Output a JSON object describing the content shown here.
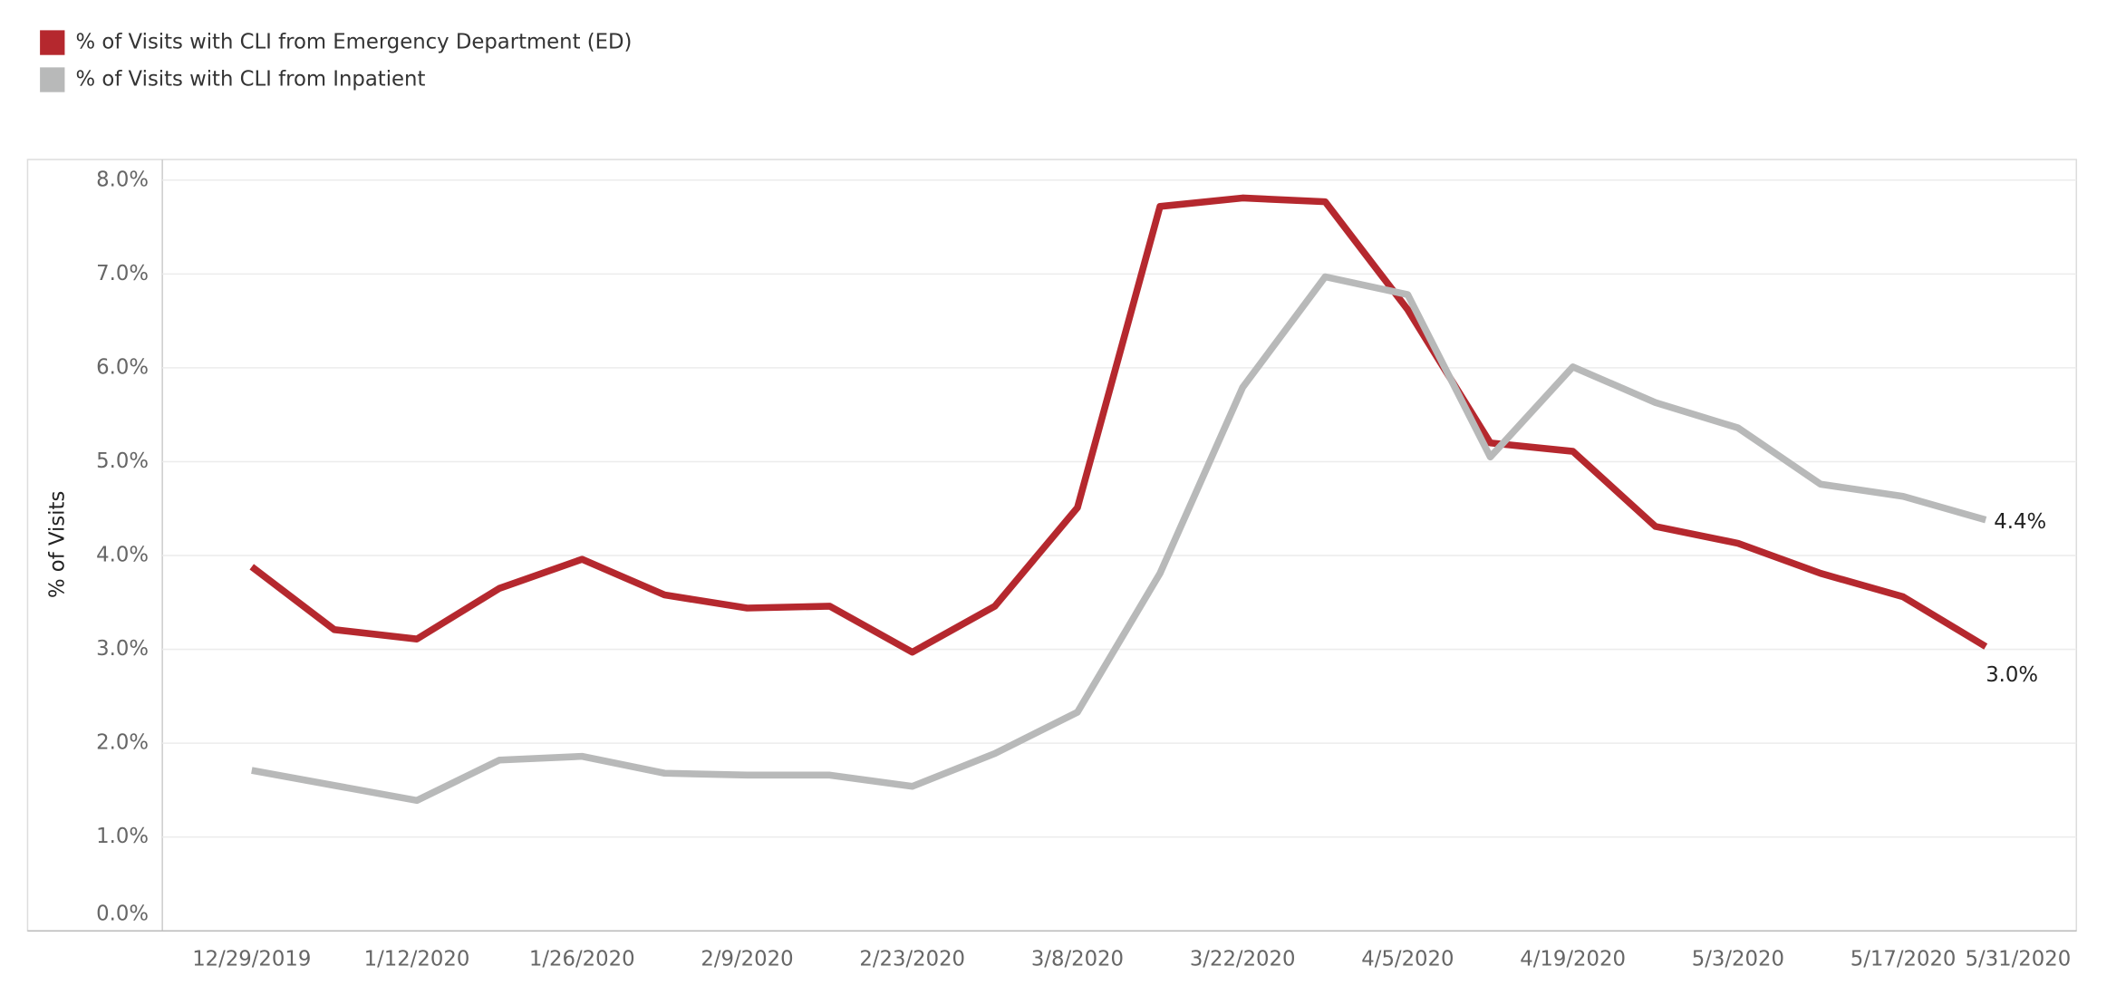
{
  "chart_data": {
    "type": "line",
    "categories": [
      "12/29/2019",
      null,
      "1/12/2020",
      null,
      "1/26/2020",
      null,
      "2/9/2020",
      null,
      "2/23/2020",
      null,
      "3/8/2020",
      null,
      "3/22/2020",
      null,
      "4/5/2020",
      null,
      "4/19/2020",
      null,
      "5/3/2020",
      null,
      "5/17/2020",
      null,
      "5/31/2020"
    ],
    "y_label": "% of Visits",
    "series": [
      {
        "name": "% of Visits with CLI from Emergency Department (ED)",
        "color": "#b5282e",
        "values": [
          3.88,
          3.21,
          3.11,
          3.65,
          3.96,
          3.58,
          3.44,
          3.46,
          2.97,
          3.46,
          4.51,
          7.72,
          7.81,
          7.77,
          6.62,
          5.2,
          5.11,
          4.31,
          4.13,
          3.81,
          3.56,
          3.03,
          null
        ],
        "value_labels": [
          null,
          null,
          null,
          null,
          null,
          null,
          null,
          null,
          null,
          null,
          null,
          null,
          null,
          null,
          null,
          null,
          null,
          null,
          null,
          null,
          null,
          "3.0%",
          null
        ]
      },
      {
        "name": "% of Visits with CLI from Inpatient",
        "color": "#b8b9b9",
        "values": [
          1.71,
          1.55,
          1.39,
          1.82,
          1.86,
          1.68,
          1.66,
          1.66,
          1.54,
          1.89,
          2.33,
          3.81,
          5.79,
          6.97,
          6.78,
          5.05,
          6.01,
          5.63,
          5.36,
          4.76,
          4.63,
          4.38,
          null
        ],
        "value_labels": [
          null,
          null,
          null,
          null,
          null,
          null,
          null,
          null,
          null,
          null,
          null,
          null,
          null,
          null,
          null,
          null,
          null,
          null,
          null,
          null,
          null,
          "4.4%",
          null
        ]
      }
    ],
    "ylim": [
      0,
      8.22
    ],
    "yticks": [
      {
        "value": 0,
        "label": "0.0%"
      },
      {
        "value": 1,
        "label": "1.0%"
      },
      {
        "value": 2,
        "label": "2.0%"
      },
      {
        "value": 3,
        "label": "3.0%"
      },
      {
        "value": 4,
        "label": "4.0%"
      },
      {
        "value": 5,
        "label": "5.0%"
      },
      {
        "value": 6,
        "label": "6.0%"
      },
      {
        "value": 7,
        "label": "7.0%"
      },
      {
        "value": 8,
        "label": "8.0%"
      }
    ],
    "grid": true,
    "legend": "top-left"
  }
}
